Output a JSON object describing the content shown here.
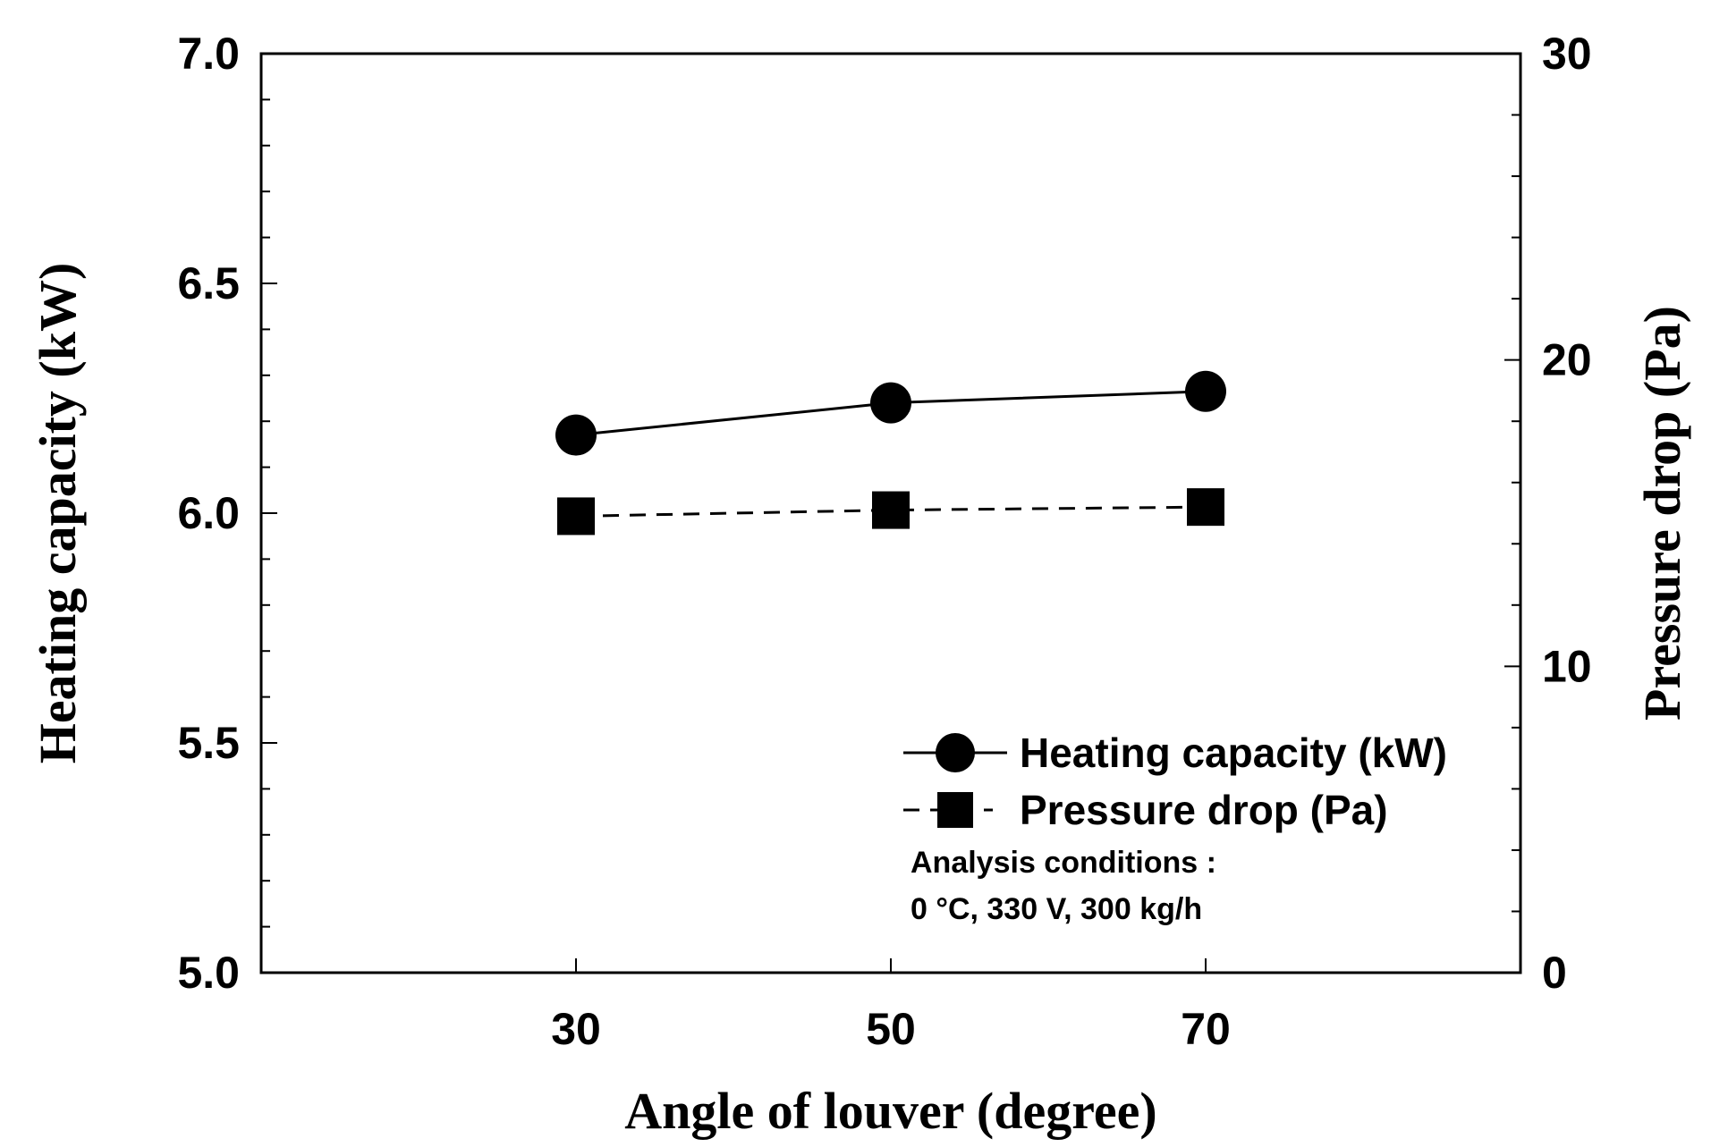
{
  "chart_data": {
    "type": "line",
    "title": "",
    "xlabel": "Angle of louver (degree)",
    "ylabel": "Heating capacity (kW)",
    "y2label": "Pressure drop (Pa)",
    "x": [
      30,
      50,
      70
    ],
    "xticks": [
      "30",
      "50",
      "70"
    ],
    "xlim": [
      10,
      90
    ],
    "ylim": [
      5.0,
      7.0
    ],
    "yticks": [
      "5.0",
      "5.5",
      "6.0",
      "6.5",
      "7.0"
    ],
    "y2lim": [
      0,
      30
    ],
    "y2ticks": [
      "0",
      "10",
      "20",
      "30"
    ],
    "grid": false,
    "legend_position": "bottom-right",
    "series": [
      {
        "name": "Heating capacity (kW)",
        "axis": "left",
        "marker": "circle",
        "line": "solid",
        "values": [
          6.17,
          6.24,
          6.265
        ]
      },
      {
        "name": "Pressure drop (Pa)",
        "axis": "right",
        "marker": "square",
        "line": "dashed",
        "values": [
          14.9,
          15.1,
          15.2
        ]
      }
    ],
    "annotation": {
      "line1": "Analysis conditions :",
      "line2": "0 °C, 330 V, 300 kg/h"
    }
  }
}
